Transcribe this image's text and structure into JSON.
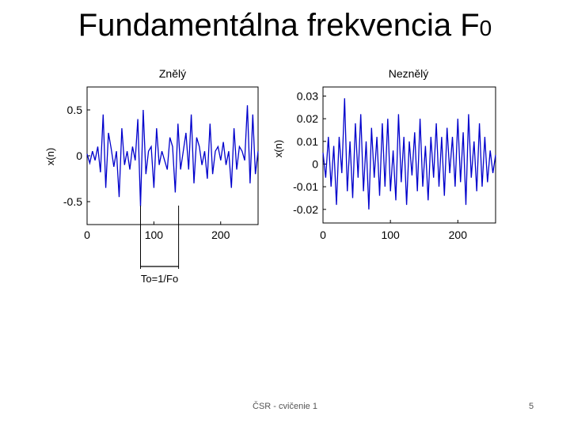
{
  "slide": {
    "title_main": "Fundamentálna frekvencia F",
    "title_sub": "0",
    "footer_text": "ČSR - cvičenie 1",
    "page_number": "5"
  },
  "annotation": {
    "period_label": "To=1/Fo",
    "x_start": 80,
    "x_end": 137
  },
  "colors": {
    "signal": "#0000cc",
    "axes": "#000000"
  },
  "chart_data": [
    {
      "type": "line",
      "title": "Znělý",
      "ylabel": "x(n)",
      "xlabel": "",
      "xlim": [
        0,
        256
      ],
      "ylim": [
        -0.75,
        0.75
      ],
      "x_ticks": [
        0,
        100,
        200
      ],
      "y_ticks": [
        0.5,
        0,
        -0.5
      ],
      "y_tick_labels": [
        "0.5",
        "0",
        "-0.5"
      ],
      "grid": false,
      "series": [
        {
          "name": "",
          "x": [
            0,
            4,
            8,
            12,
            16,
            20,
            24,
            28,
            32,
            36,
            40,
            44,
            48,
            52,
            56,
            60,
            64,
            68,
            72,
            76,
            80,
            84,
            88,
            92,
            96,
            100,
            104,
            108,
            112,
            116,
            120,
            124,
            128,
            132,
            136,
            140,
            144,
            148,
            152,
            156,
            160,
            164,
            168,
            172,
            176,
            180,
            184,
            188,
            192,
            196,
            200,
            204,
            208,
            212,
            216,
            220,
            224,
            228,
            232,
            236,
            240,
            244,
            248,
            252,
            256
          ],
          "y": [
            0.02,
            -0.08,
            0.05,
            -0.05,
            0.1,
            -0.18,
            0.45,
            -0.35,
            0.25,
            0.08,
            -0.12,
            0.05,
            -0.45,
            0.3,
            -0.1,
            0.05,
            -0.15,
            0.1,
            -0.05,
            0.4,
            -0.55,
            0.5,
            -0.2,
            0.05,
            0.1,
            -0.35,
            0.3,
            -0.1,
            0.05,
            -0.05,
            -0.15,
            0.2,
            0.1,
            -0.4,
            0.35,
            -0.15,
            0.05,
            0.25,
            -0.15,
            0.45,
            -0.3,
            0.2,
            0.1,
            -0.1,
            0.05,
            -0.25,
            0.35,
            -0.2,
            0.05,
            0.1,
            -0.05,
            0.15,
            -0.1,
            0.05,
            -0.35,
            0.3,
            -0.15,
            0.1,
            0.05,
            -0.05,
            0.55,
            -0.3,
            0.45,
            -0.2,
            0.05
          ]
        }
      ]
    },
    {
      "type": "line",
      "title": "Neznělý",
      "ylabel": "x(n)",
      "xlabel": "",
      "xlim": [
        0,
        256
      ],
      "ylim": [
        -0.026,
        0.034
      ],
      "x_ticks": [
        0,
        100,
        200
      ],
      "y_ticks": [
        0.03,
        0.02,
        0.01,
        0,
        -0.01,
        -0.02
      ],
      "y_tick_labels": [
        "0.03",
        "0.02",
        "0.01",
        "0",
        "-0.01",
        "-0.02"
      ],
      "grid": false,
      "series": [
        {
          "name": "",
          "x": [
            0,
            4,
            8,
            12,
            16,
            20,
            24,
            28,
            32,
            36,
            40,
            44,
            48,
            52,
            56,
            60,
            64,
            68,
            72,
            76,
            80,
            84,
            88,
            92,
            96,
            100,
            104,
            108,
            112,
            116,
            120,
            124,
            128,
            132,
            136,
            140,
            144,
            148,
            152,
            156,
            160,
            164,
            168,
            172,
            176,
            180,
            184,
            188,
            192,
            196,
            200,
            204,
            208,
            212,
            216,
            220,
            224,
            228,
            232,
            236,
            240,
            244,
            248,
            252,
            256
          ],
          "y": [
            0.005,
            -0.006,
            0.012,
            -0.01,
            0.008,
            -0.018,
            0.012,
            -0.004,
            0.029,
            -0.012,
            0.01,
            -0.015,
            0.018,
            -0.006,
            0.022,
            -0.012,
            0.01,
            -0.02,
            0.016,
            -0.006,
            0.012,
            -0.014,
            0.018,
            -0.01,
            0.02,
            -0.012,
            0.006,
            -0.016,
            0.022,
            -0.008,
            0.012,
            -0.018,
            0.01,
            -0.005,
            0.014,
            -0.012,
            0.02,
            -0.01,
            0.008,
            -0.016,
            0.012,
            -0.006,
            0.018,
            -0.01,
            0.012,
            -0.014,
            0.016,
            -0.004,
            0.012,
            -0.01,
            0.02,
            -0.008,
            0.014,
            -0.018,
            0.022,
            -0.006,
            0.01,
            -0.012,
            0.018,
            -0.01,
            0.012,
            -0.008,
            0.006,
            -0.004,
            0.004
          ]
        }
      ]
    }
  ]
}
